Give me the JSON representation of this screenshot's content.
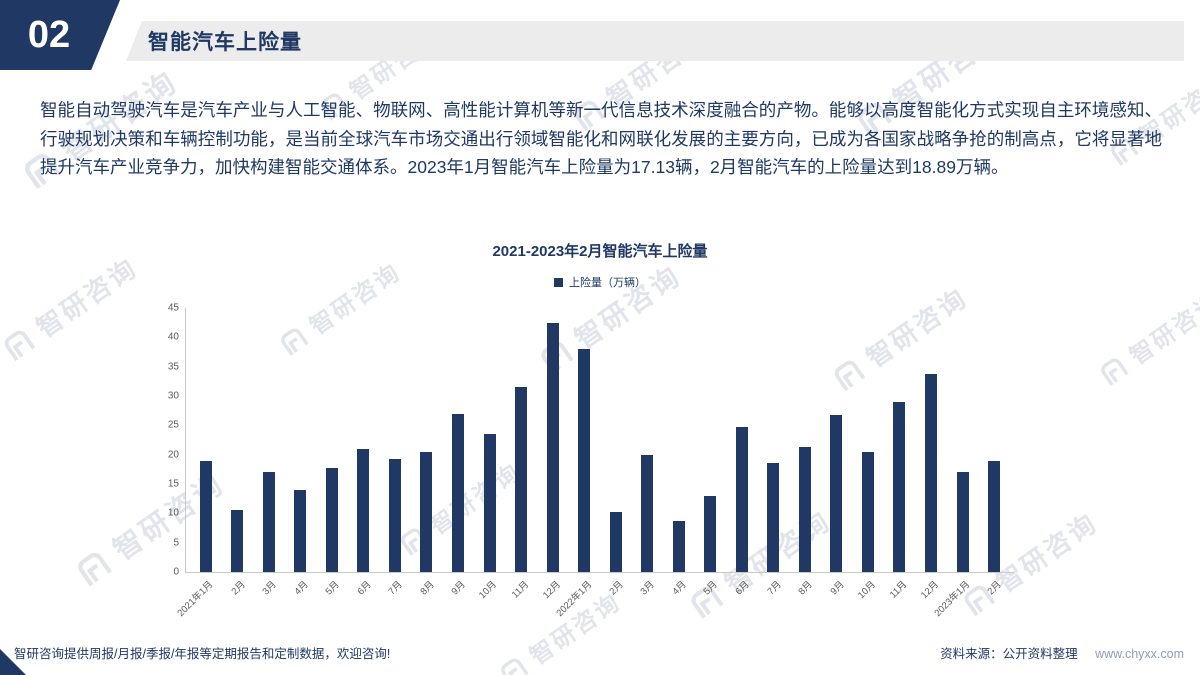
{
  "page": {
    "section_number": "02",
    "section_title": "智能汽车上险量",
    "paragraph": "智能自动驾驶汽车是汽车产业与人工智能、物联网、高性能计算机等新一代信息技术深度融合的产物。能够以高度智能化方式实现自主环境感知、行驶规划决策和车辆控制功能，是当前全球汽车市场交通出行领域智能化和网联化发展的主要方向，已成为各国家战略争抢的制高点，它将显著地提升汽车产业竞争力，加快构建智能交通体系。2023年1月智能汽车上险量为17.13辆，2月智能汽车的上险量达到18.89万辆。",
    "footer_left": "智研咨询提供周报/月报/季报/年报等定期报告和定制数据，欢迎咨询!",
    "footer_source": "资料来源：公开资料整理",
    "footer_url": "www.chyxx.com",
    "watermark_text": "智研咨询"
  },
  "colors": {
    "accent": "#1F3864",
    "bar": "#1F3864",
    "header_bar_bg": "#ececec",
    "tick_text": "#595959"
  },
  "chart_data": {
    "type": "bar",
    "title": "2021-2023年2月智能汽车上险量",
    "legend": "上险量（万辆）",
    "categories": [
      "2021年1月",
      "2月",
      "3月",
      "4月",
      "5月",
      "6月",
      "7月",
      "8月",
      "9月",
      "10月",
      "11月",
      "12月",
      "2022年1月",
      "2月",
      "3月",
      "4月",
      "5月",
      "6月",
      "7月",
      "8月",
      "9月",
      "10月",
      "11月",
      "12月",
      "2023年1月",
      "2月"
    ],
    "values": [
      19,
      10.5,
      17,
      14,
      17.8,
      21,
      19.2,
      20.4,
      27,
      23.5,
      31.5,
      42.5,
      38,
      10.3,
      20,
      8.7,
      13,
      24.8,
      18.5,
      21.3,
      26.8,
      20.5,
      29,
      33.8,
      17.13,
      18.89
    ],
    "ylim": [
      0,
      45
    ],
    "yticks": [
      0,
      5,
      10,
      15,
      20,
      25,
      30,
      35,
      40,
      45
    ],
    "grid": false,
    "legend_position": "top-center"
  }
}
